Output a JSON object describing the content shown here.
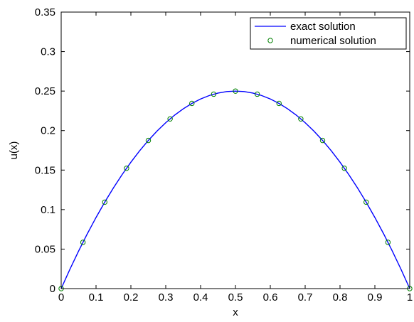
{
  "chart_data": {
    "type": "line",
    "title": "",
    "xlabel": "x",
    "ylabel": "u(x)",
    "xlim": [
      0,
      1
    ],
    "ylim": [
      0,
      0.35
    ],
    "x_ticks": [
      0,
      0.1,
      0.2,
      0.3,
      0.4,
      0.5,
      0.6,
      0.7,
      0.8,
      0.9,
      1
    ],
    "x_tick_labels": [
      "0",
      "0.1",
      "0.2",
      "0.3",
      "0.4",
      "0.5",
      "0.6",
      "0.7",
      "0.8",
      "0.9",
      "1"
    ],
    "y_ticks": [
      0,
      0.05,
      0.1,
      0.15,
      0.2,
      0.25,
      0.3,
      0.35
    ],
    "y_tick_labels": [
      "0",
      "0.05",
      "0.1",
      "0.15",
      "0.2",
      "0.25",
      "0.3",
      "0.35"
    ],
    "grid": false,
    "legend_position": "top-right",
    "series": [
      {
        "name": "exact solution",
        "style": "line",
        "color": "#0000ff",
        "function": "x*(1-x)",
        "x": [
          0,
          0.025,
          0.05,
          0.075,
          0.1,
          0.125,
          0.15,
          0.175,
          0.2,
          0.225,
          0.25,
          0.275,
          0.3,
          0.325,
          0.35,
          0.375,
          0.4,
          0.425,
          0.45,
          0.475,
          0.5,
          0.525,
          0.55,
          0.575,
          0.6,
          0.625,
          0.65,
          0.675,
          0.7,
          0.725,
          0.75,
          0.775,
          0.8,
          0.825,
          0.85,
          0.875,
          0.9,
          0.925,
          0.95,
          0.975,
          1
        ],
        "y": [
          0,
          0.0244,
          0.0475,
          0.0694,
          0.09,
          0.1094,
          0.1275,
          0.1444,
          0.16,
          0.1744,
          0.1875,
          0.1994,
          0.21,
          0.2194,
          0.2275,
          0.2344,
          0.24,
          0.2444,
          0.2475,
          0.2494,
          0.25,
          0.2494,
          0.2475,
          0.2444,
          0.24,
          0.2344,
          0.2275,
          0.2194,
          0.21,
          0.1994,
          0.1875,
          0.1744,
          0.16,
          0.1444,
          0.1275,
          0.1094,
          0.09,
          0.0694,
          0.0475,
          0.0244,
          0
        ]
      },
      {
        "name": "numerical solution",
        "style": "markers",
        "color": "#008000",
        "marker": "circle",
        "x": [
          0,
          0.0625,
          0.125,
          0.1875,
          0.25,
          0.3125,
          0.375,
          0.4375,
          0.5,
          0.5625,
          0.625,
          0.6875,
          0.75,
          0.8125,
          0.875,
          0.9375,
          1
        ],
        "y": [
          0,
          0.0586,
          0.1094,
          0.1523,
          0.1875,
          0.2148,
          0.2344,
          0.2461,
          0.25,
          0.2461,
          0.2344,
          0.2148,
          0.1875,
          0.1523,
          0.1094,
          0.0586,
          0
        ]
      }
    ]
  }
}
